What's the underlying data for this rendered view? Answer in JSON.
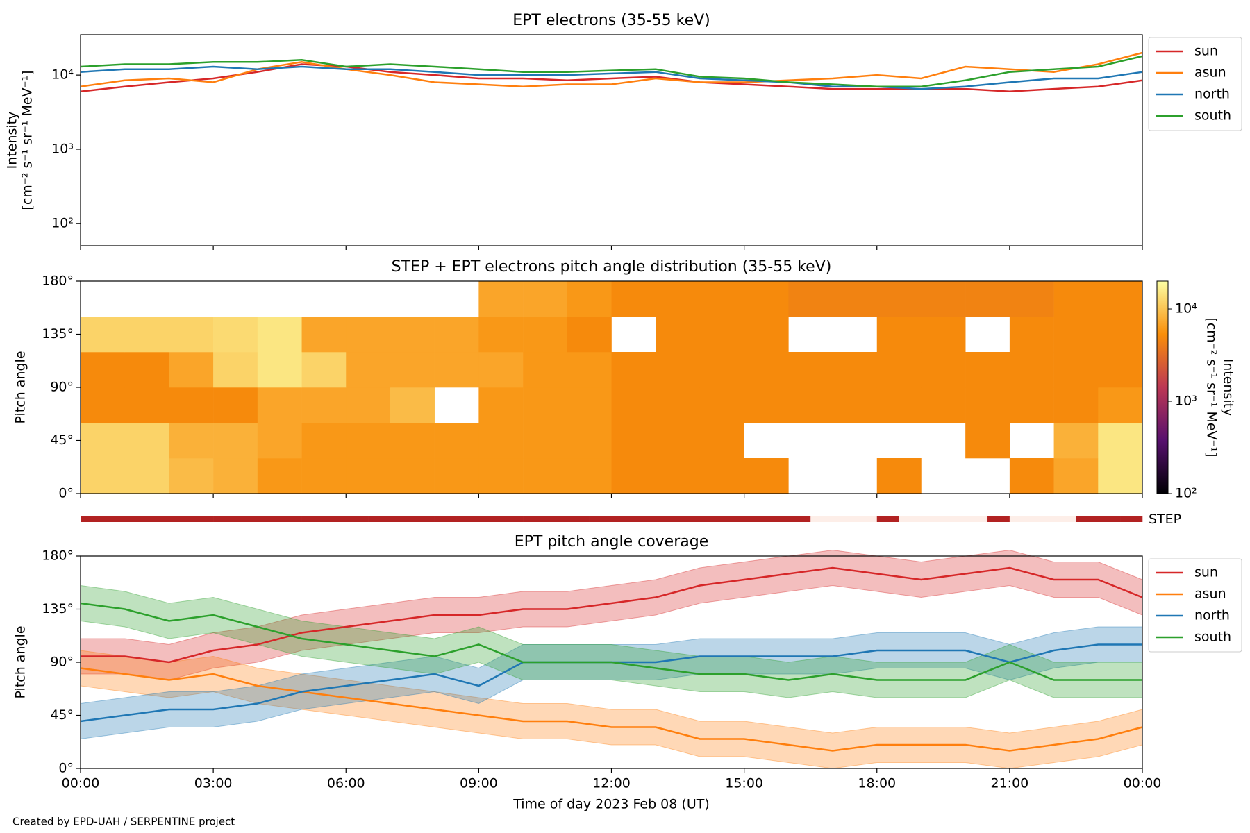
{
  "footer": "Created by EPD-UAH / SERPENTINE project",
  "chart_data": [
    {
      "type": "line",
      "title": "EPT electrons (35-55 keV)",
      "ylabel": [
        "Intensity",
        "[cm⁻² s⁻¹ sr⁻¹ MeV⁻¹]"
      ],
      "log_y": true,
      "xlim": [
        0,
        24
      ],
      "ylim": [
        50,
        35000
      ],
      "yticks": [
        {
          "value": 100,
          "label": "10²"
        },
        {
          "value": 1000,
          "label": "10³"
        },
        {
          "value": 10000,
          "label": "10⁴"
        }
      ],
      "legend": "outside-upper-right",
      "x": [
        0,
        1,
        2,
        3,
        4,
        5,
        6,
        7,
        8,
        9,
        10,
        11,
        12,
        13,
        14,
        15,
        16,
        17,
        18,
        19,
        20,
        21,
        22,
        23,
        24
      ],
      "series": [
        {
          "name": "sun",
          "color": "#d62728",
          "values": [
            6000,
            7000,
            8000,
            9000,
            11000,
            14000,
            13000,
            11000,
            10000,
            9000,
            9000,
            8500,
            9000,
            9500,
            8000,
            7500,
            7000,
            6500,
            6500,
            6500,
            6500,
            6000,
            6500,
            7000,
            8500
          ]
        },
        {
          "name": "asun",
          "color": "#ff7f0e",
          "values": [
            7000,
            8500,
            9000,
            8000,
            12000,
            15000,
            12000,
            10000,
            8000,
            7500,
            7000,
            7500,
            7500,
            9000,
            8000,
            8000,
            8500,
            9000,
            10000,
            9000,
            13000,
            12000,
            11000,
            14000,
            20000
          ]
        },
        {
          "name": "north",
          "color": "#1f77b4",
          "values": [
            11000,
            12000,
            12000,
            13000,
            12000,
            13000,
            12000,
            12000,
            11000,
            10000,
            10000,
            10000,
            10500,
            11000,
            9000,
            8500,
            8000,
            7000,
            7000,
            6500,
            7000,
            8000,
            9000,
            9000,
            11000
          ]
        },
        {
          "name": "south",
          "color": "#2ca02c",
          "values": [
            13000,
            14000,
            14000,
            15000,
            15000,
            16000,
            13000,
            14000,
            13000,
            12000,
            11000,
            11000,
            11500,
            12000,
            9500,
            9000,
            8000,
            7500,
            7000,
            7000,
            8500,
            11000,
            12000,
            13000,
            18000
          ]
        }
      ]
    },
    {
      "type": "heatmap",
      "title": "STEP + EPT electrons pitch angle distribution (35-55 keV)",
      "ylabel": "Pitch angle",
      "xlim": [
        0,
        24
      ],
      "ylim": [
        0,
        180
      ],
      "yticks": [
        {
          "value": 0,
          "label": "0°"
        },
        {
          "value": 45,
          "label": "45°"
        },
        {
          "value": 90,
          "label": "90°"
        },
        {
          "value": 135,
          "label": "135°"
        },
        {
          "value": 180,
          "label": "180°"
        }
      ],
      "x_bins": [
        0,
        1,
        2,
        3,
        4,
        5,
        6,
        7,
        8,
        9,
        10,
        11,
        12,
        13,
        14,
        15,
        16,
        17,
        18,
        19,
        20,
        21,
        22,
        23,
        24
      ],
      "y_bins": [
        0,
        30,
        60,
        90,
        120,
        150,
        180
      ],
      "z": [
        [
          12000,
          12000,
          9000,
          8000,
          6000,
          6000,
          6000,
          6000,
          6000,
          6000,
          6000,
          6000,
          5000,
          5000,
          5000,
          5000,
          null,
          null,
          5000,
          null,
          null,
          5000,
          7000,
          15000
        ],
        [
          12000,
          12000,
          8000,
          8000,
          7000,
          6000,
          6000,
          6000,
          6000,
          6000,
          6000,
          6000,
          5000,
          5000,
          5000,
          null,
          null,
          null,
          null,
          null,
          5000,
          null,
          8000,
          15000
        ],
        [
          5000,
          5000,
          5000,
          5000,
          7000,
          7000,
          7000,
          9000,
          null,
          6000,
          6000,
          6000,
          5000,
          5000,
          5000,
          5000,
          5000,
          5000,
          5000,
          5000,
          5000,
          5000,
          5000,
          6000
        ],
        [
          5000,
          5000,
          7000,
          12000,
          15000,
          12000,
          7000,
          7000,
          7000,
          7000,
          6000,
          6000,
          5000,
          5000,
          5000,
          5000,
          5000,
          5000,
          5000,
          5000,
          5000,
          5000,
          5000,
          5000
        ],
        [
          12000,
          12000,
          12000,
          13000,
          15000,
          7000,
          7000,
          7000,
          7000,
          6000,
          6000,
          5000,
          null,
          5000,
          5000,
          5000,
          null,
          null,
          5000,
          5000,
          null,
          5000,
          5000,
          5000
        ],
        [
          null,
          null,
          null,
          null,
          null,
          null,
          null,
          null,
          null,
          7000,
          7000,
          6000,
          5000,
          5000,
          5000,
          5000,
          4500,
          4500,
          4500,
          4500,
          4500,
          4500,
          5000,
          5000
        ]
      ],
      "colormap": [
        "#000004",
        "#57106e",
        "#bc3754",
        "#f98e09",
        "#fcffa4"
      ],
      "zlim": [
        100,
        20000
      ],
      "zticks": [
        {
          "value": 100,
          "label": "10²"
        },
        {
          "value": 1000,
          "label": "10³"
        },
        {
          "value": 10000,
          "label": "10⁴"
        }
      ],
      "colorbar_label": [
        "Intensity",
        "[cm⁻² s⁻¹ sr⁻¹ MeV⁻¹]"
      ]
    },
    {
      "type": "availability",
      "label": "STEP",
      "xlim": [
        0,
        24
      ],
      "on_color": "#b22222",
      "off_color": "#fdeee8",
      "values": [
        1,
        1,
        1,
        1,
        1,
        1,
        1,
        1,
        1,
        1,
        1,
        1,
        1,
        1,
        1,
        1,
        1,
        1,
        1,
        1,
        1,
        1,
        1,
        1,
        1,
        1,
        1,
        1,
        1,
        1,
        1,
        1,
        1,
        0,
        0,
        0,
        1,
        0,
        0,
        0,
        0,
        1,
        0,
        0,
        0,
        1,
        1,
        1
      ]
    },
    {
      "type": "line",
      "title": "EPT pitch angle coverage",
      "ylabel": "Pitch angle",
      "xlabel": "Time of day 2023 Feb 08 (UT)",
      "xlim": [
        0,
        24
      ],
      "ylim": [
        0,
        180
      ],
      "xticks": [
        {
          "value": 0,
          "label": "00:00"
        },
        {
          "value": 3,
          "label": "03:00"
        },
        {
          "value": 6,
          "label": "06:00"
        },
        {
          "value": 9,
          "label": "09:00"
        },
        {
          "value": 12,
          "label": "12:00"
        },
        {
          "value": 15,
          "label": "15:00"
        },
        {
          "value": 18,
          "label": "18:00"
        },
        {
          "value": 21,
          "label": "21:00"
        },
        {
          "value": 24,
          "label": "00:00"
        }
      ],
      "yticks": [
        {
          "value": 0,
          "label": "0°"
        },
        {
          "value": 45,
          "label": "45°"
        },
        {
          "value": 90,
          "label": "90°"
        },
        {
          "value": 135,
          "label": "135°"
        },
        {
          "value": 180,
          "label": "180°"
        }
      ],
      "legend": "outside-upper-right",
      "x": [
        0,
        1,
        2,
        3,
        4,
        5,
        6,
        7,
        8,
        9,
        10,
        11,
        12,
        13,
        14,
        15,
        16,
        17,
        18,
        19,
        20,
        21,
        22,
        23,
        24
      ],
      "series": [
        {
          "name": "sun",
          "color": "#d62728",
          "band": 15,
          "values": [
            95,
            95,
            90,
            100,
            105,
            115,
            120,
            125,
            130,
            130,
            135,
            135,
            140,
            145,
            155,
            160,
            165,
            170,
            165,
            160,
            165,
            170,
            160,
            160,
            145
          ]
        },
        {
          "name": "asun",
          "color": "#ff7f0e",
          "band": 15,
          "values": [
            85,
            80,
            75,
            80,
            70,
            65,
            60,
            55,
            50,
            45,
            40,
            40,
            35,
            35,
            25,
            25,
            20,
            15,
            20,
            20,
            20,
            15,
            20,
            25,
            35
          ]
        },
        {
          "name": "north",
          "color": "#1f77b4",
          "band": 15,
          "values": [
            40,
            45,
            50,
            50,
            55,
            65,
            70,
            75,
            80,
            70,
            90,
            90,
            90,
            90,
            95,
            95,
            95,
            95,
            100,
            100,
            100,
            90,
            100,
            105,
            105
          ]
        },
        {
          "name": "south",
          "color": "#2ca02c",
          "band": 15,
          "values": [
            140,
            135,
            125,
            130,
            120,
            110,
            105,
            100,
            95,
            105,
            90,
            90,
            90,
            85,
            80,
            80,
            75,
            80,
            75,
            75,
            75,
            90,
            75,
            75,
            75
          ]
        }
      ]
    }
  ]
}
